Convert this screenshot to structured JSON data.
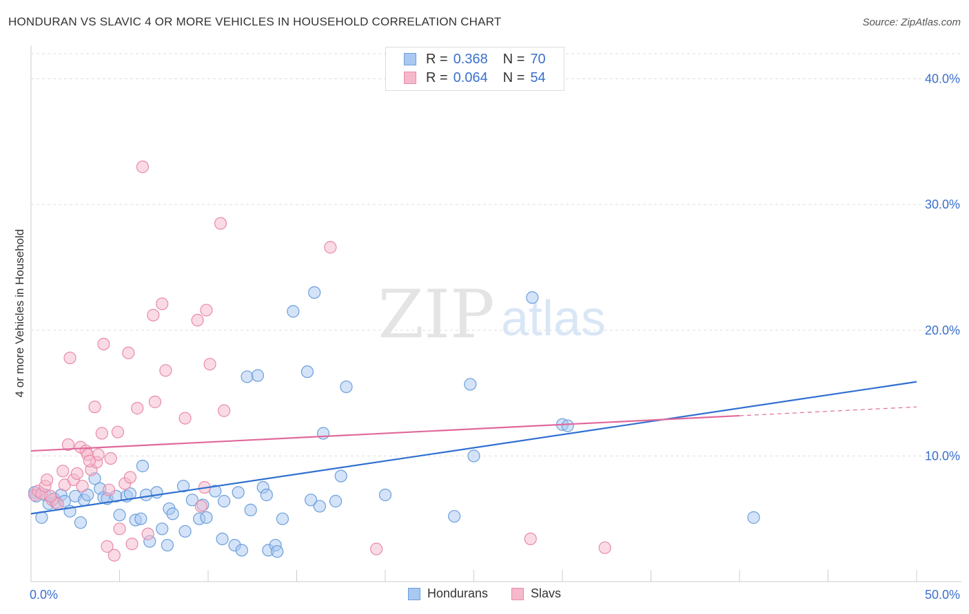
{
  "header": {
    "title": "HONDURAN VS SLAVIC 4 OR MORE VEHICLES IN HOUSEHOLD CORRELATION CHART",
    "source": "Source: ZipAtlas.com"
  },
  "watermark": {
    "zip": "ZIP",
    "atlas": "atlas"
  },
  "legend_top": {
    "rows": [
      {
        "r_label": "R =",
        "r_value": "0.368",
        "n_label": "N =",
        "n_value": "70"
      },
      {
        "r_label": "R =",
        "r_value": "0.064",
        "n_label": "N =",
        "n_value": "54"
      }
    ]
  },
  "colors": {
    "blue_fill": "#a9c8f2",
    "blue_stroke": "#6a9edb",
    "blue_line": "#2f6fd0",
    "pink_fill": "#f6b8cb",
    "pink_stroke": "#e88aa8",
    "pink_line": "#e0689a",
    "axis_label": "#3a6fcc",
    "grid": "#dddddd"
  },
  "chart_data": {
    "type": "scatter",
    "title": "HONDURAN VS SLAVIC 4 OR MORE VEHICLES IN HOUSEHOLD CORRELATION CHART",
    "ylabel": "4 or more Vehicles in Household",
    "xlim": [
      0,
      50
    ],
    "ylim": [
      0,
      42
    ],
    "x_tick_labels": [
      {
        "value": 0,
        "label": "0.0%"
      },
      {
        "value": 50,
        "label": "50.0%"
      }
    ],
    "y_ticks": [
      {
        "value": 10,
        "label": "10.0%"
      },
      {
        "value": 20,
        "label": "20.0%"
      },
      {
        "value": 30,
        "label": "30.0%"
      },
      {
        "value": 40,
        "label": "40.0%"
      }
    ],
    "legend_position": "bottom",
    "series": [
      {
        "name": "Hondurans",
        "color": "#6a9edb",
        "r": 0.368,
        "n": 70,
        "trend": {
          "x0": 0,
          "y0": 5.4,
          "x1": 50,
          "y1": 15.9
        },
        "points": [
          [
            0.2,
            7.1
          ],
          [
            0.3,
            6.8
          ],
          [
            0.6,
            5.1
          ],
          [
            0.8,
            6.9
          ],
          [
            1.0,
            6.2
          ],
          [
            1.3,
            6.6
          ],
          [
            1.4,
            6.3
          ],
          [
            1.7,
            6.9
          ],
          [
            1.9,
            6.4
          ],
          [
            2.2,
            5.6
          ],
          [
            2.5,
            6.8
          ],
          [
            2.8,
            4.7
          ],
          [
            3.0,
            6.5
          ],
          [
            3.2,
            6.9
          ],
          [
            3.6,
            8.2
          ],
          [
            3.9,
            7.4
          ],
          [
            4.1,
            6.7
          ],
          [
            4.3,
            6.6
          ],
          [
            4.8,
            6.8
          ],
          [
            5.0,
            5.3
          ],
          [
            5.4,
            6.8
          ],
          [
            5.6,
            7.0
          ],
          [
            5.9,
            4.9
          ],
          [
            6.2,
            5.0
          ],
          [
            6.3,
            9.2
          ],
          [
            6.5,
            6.9
          ],
          [
            6.7,
            3.2
          ],
          [
            7.1,
            7.1
          ],
          [
            7.4,
            4.2
          ],
          [
            7.7,
            2.9
          ],
          [
            7.8,
            5.8
          ],
          [
            8.0,
            5.4
          ],
          [
            8.6,
            7.6
          ],
          [
            8.7,
            4.0
          ],
          [
            9.1,
            6.5
          ],
          [
            9.5,
            5.0
          ],
          [
            9.7,
            6.1
          ],
          [
            9.9,
            5.1
          ],
          [
            10.4,
            7.2
          ],
          [
            10.8,
            3.4
          ],
          [
            10.9,
            6.4
          ],
          [
            11.5,
            2.9
          ],
          [
            11.7,
            7.1
          ],
          [
            11.9,
            2.5
          ],
          [
            12.2,
            16.3
          ],
          [
            12.4,
            5.7
          ],
          [
            12.8,
            16.4
          ],
          [
            13.1,
            7.5
          ],
          [
            13.3,
            6.9
          ],
          [
            13.4,
            2.5
          ],
          [
            13.8,
            2.9
          ],
          [
            13.9,
            2.4
          ],
          [
            14.2,
            5.0
          ],
          [
            14.8,
            21.5
          ],
          [
            15.6,
            16.7
          ],
          [
            15.8,
            6.5
          ],
          [
            16.0,
            23.0
          ],
          [
            16.3,
            6.0
          ],
          [
            16.5,
            11.8
          ],
          [
            17.2,
            6.4
          ],
          [
            17.5,
            8.4
          ],
          [
            17.8,
            15.5
          ],
          [
            20.0,
            6.9
          ],
          [
            23.9,
            5.2
          ],
          [
            24.8,
            15.7
          ],
          [
            25.0,
            10.0
          ],
          [
            28.3,
            22.6
          ],
          [
            30.0,
            12.5
          ],
          [
            40.8,
            5.1
          ],
          [
            30.3,
            12.4
          ]
        ]
      },
      {
        "name": "Slavs",
        "color": "#e88aa8",
        "r": 0.064,
        "n": 54,
        "trend": {
          "x0": 0,
          "y0": 10.4,
          "x1": 40,
          "y1": 13.2
        },
        "trend_dashed": {
          "x0": 40,
          "y0": 13.2,
          "x1": 50,
          "y1": 13.9
        },
        "points": [
          [
            0.2,
            6.9
          ],
          [
            0.4,
            7.2
          ],
          [
            0.6,
            7.0
          ],
          [
            0.8,
            7.6
          ],
          [
            0.9,
            8.1
          ],
          [
            1.2,
            6.5
          ],
          [
            1.5,
            6.2
          ],
          [
            1.8,
            8.8
          ],
          [
            1.9,
            7.7
          ],
          [
            2.1,
            10.9
          ],
          [
            2.2,
            17.8
          ],
          [
            2.4,
            8.1
          ],
          [
            2.6,
            8.6
          ],
          [
            2.8,
            10.7
          ],
          [
            2.9,
            7.6
          ],
          [
            3.1,
            10.4
          ],
          [
            3.2,
            10.1
          ],
          [
            3.4,
            8.9
          ],
          [
            3.6,
            13.9
          ],
          [
            3.7,
            9.5
          ],
          [
            3.8,
            10.1
          ],
          [
            4.0,
            11.8
          ],
          [
            4.1,
            18.9
          ],
          [
            4.3,
            2.8
          ],
          [
            4.4,
            7.3
          ],
          [
            4.5,
            9.8
          ],
          [
            4.7,
            2.1
          ],
          [
            4.9,
            11.9
          ],
          [
            5.0,
            4.2
          ],
          [
            5.3,
            7.8
          ],
          [
            5.5,
            18.2
          ],
          [
            5.6,
            8.3
          ],
          [
            5.7,
            3.0
          ],
          [
            6.0,
            13.8
          ],
          [
            6.3,
            33.0
          ],
          [
            6.6,
            3.8
          ],
          [
            7.0,
            14.3
          ],
          [
            7.4,
            22.1
          ],
          [
            7.6,
            16.8
          ],
          [
            8.7,
            13.0
          ],
          [
            9.4,
            20.8
          ],
          [
            9.6,
            6.0
          ],
          [
            9.8,
            7.5
          ],
          [
            9.9,
            21.6
          ],
          [
            10.1,
            17.3
          ],
          [
            10.7,
            28.5
          ],
          [
            10.9,
            13.6
          ],
          [
            16.9,
            26.6
          ],
          [
            19.5,
            2.6
          ],
          [
            28.2,
            3.4
          ],
          [
            32.4,
            2.7
          ],
          [
            6.9,
            21.2
          ],
          [
            3.3,
            9.6
          ],
          [
            1.1,
            6.8
          ]
        ]
      }
    ]
  },
  "bottom_legend": {
    "items": [
      {
        "label": "Hondurans"
      },
      {
        "label": "Slavs"
      }
    ]
  }
}
